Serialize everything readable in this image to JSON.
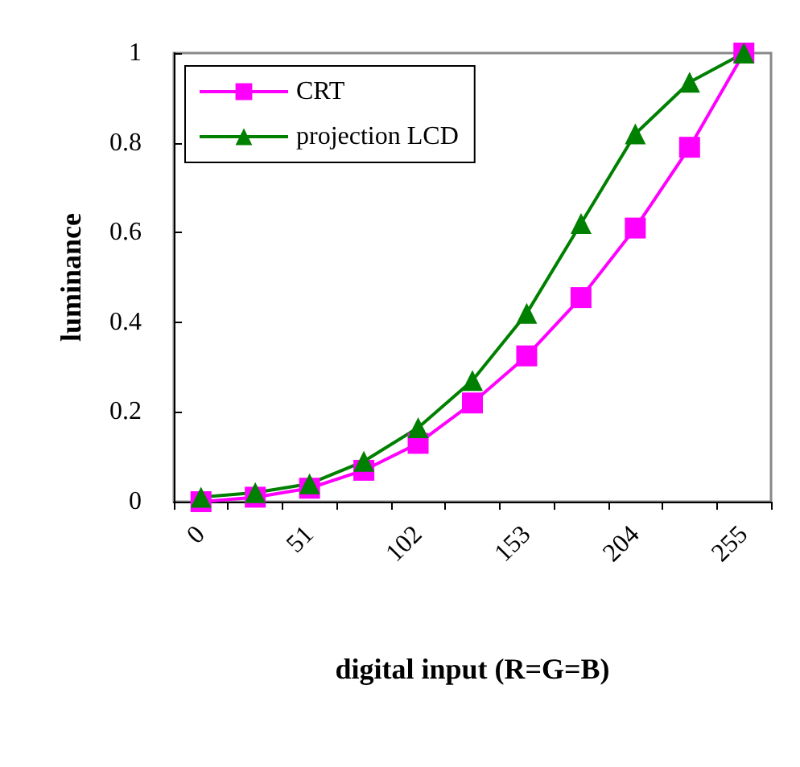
{
  "chart_data": {
    "type": "line",
    "xlabel": "digital input (R=G=B)",
    "ylabel": "luminance",
    "categories": [
      "0",
      null,
      "51",
      null,
      "102",
      null,
      "153",
      null,
      "204",
      null,
      "255"
    ],
    "series": [
      {
        "name": "CRT",
        "color": "#ff00ff",
        "marker": "square",
        "values": [
          0.0,
          0.01,
          0.03,
          0.07,
          0.13,
          0.22,
          0.325,
          0.455,
          0.61,
          0.79,
          1.0
        ]
      },
      {
        "name": "projection LCD",
        "color": "#008000",
        "marker": "triangle",
        "values": [
          0.01,
          0.02,
          0.04,
          0.09,
          0.165,
          0.27,
          0.42,
          0.62,
          0.82,
          0.935,
          1.0
        ]
      }
    ],
    "ylim": [
      0,
      1
    ],
    "yticks": [
      0,
      0.2,
      0.4,
      0.6,
      0.8,
      1
    ],
    "grid": false,
    "legend": "top left"
  }
}
